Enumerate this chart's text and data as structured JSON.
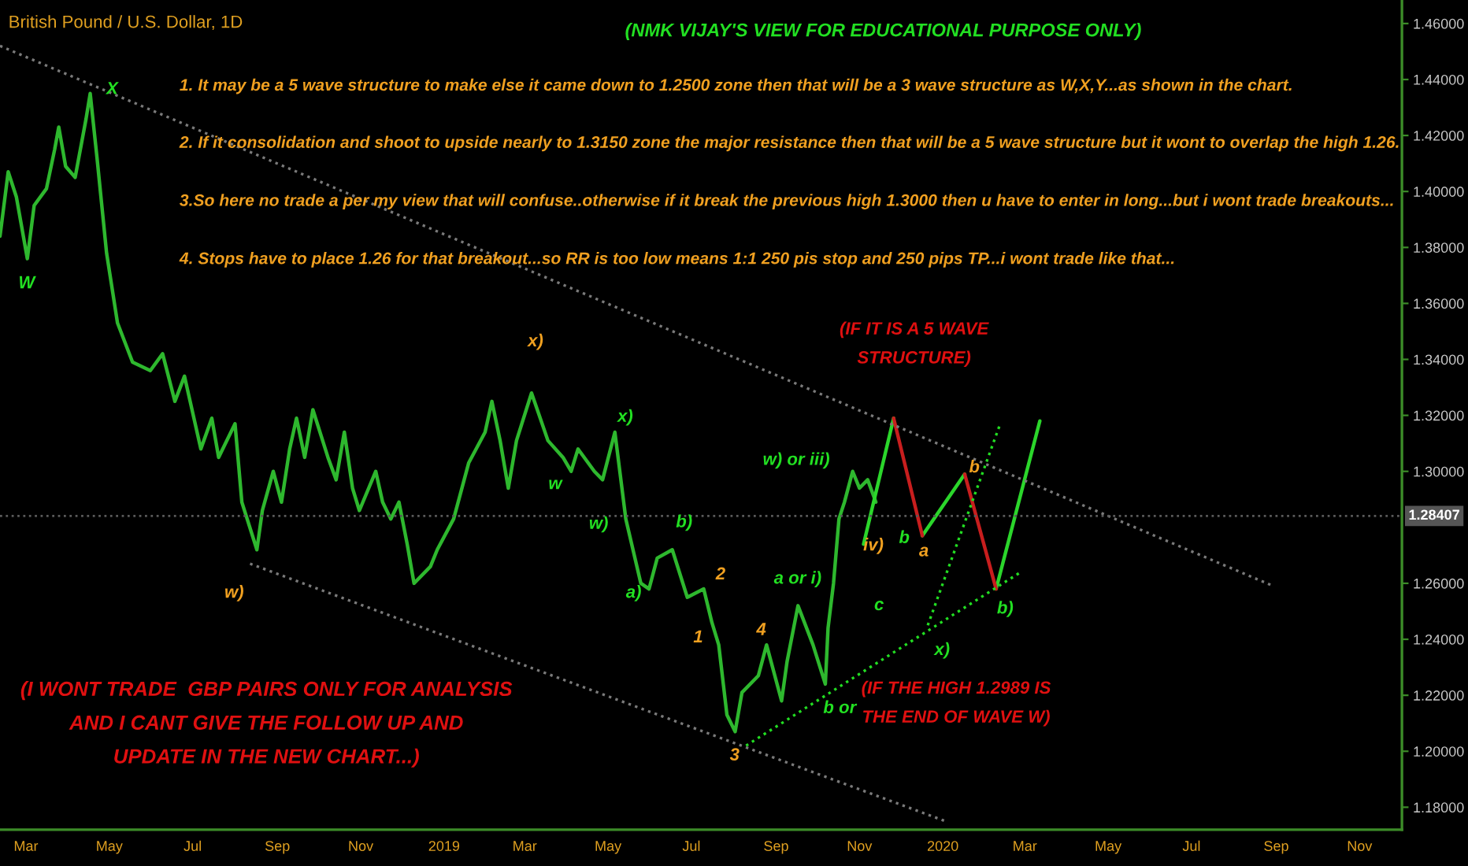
{
  "chart_data": {
    "type": "line",
    "title": "British Pound / U.S. Dollar, 1D",
    "xlim": [
      "2018-02-10",
      "2020-12-02"
    ],
    "ylim": [
      1.172,
      1.4684
    ],
    "xticks": [
      {
        "value": "2018-03-01",
        "label": "Mar"
      },
      {
        "value": "2018-05-01",
        "label": "May"
      },
      {
        "value": "2018-07-01",
        "label": "Jul"
      },
      {
        "value": "2018-09-01",
        "label": "Sep"
      },
      {
        "value": "2018-11-01",
        "label": "Nov"
      },
      {
        "value": "2019-01-01",
        "label": "2019"
      },
      {
        "value": "2019-03-01",
        "label": "Mar"
      },
      {
        "value": "2019-05-01",
        "label": "May"
      },
      {
        "value": "2019-07-01",
        "label": "Jul"
      },
      {
        "value": "2019-09-01",
        "label": "Sep"
      },
      {
        "value": "2019-11-01",
        "label": "Nov"
      },
      {
        "value": "2020-01-01",
        "label": "2020"
      },
      {
        "value": "2020-03-01",
        "label": "Mar"
      },
      {
        "value": "2020-05-01",
        "label": "May"
      },
      {
        "value": "2020-07-01",
        "label": "Jul"
      },
      {
        "value": "2020-09-01",
        "label": "Sep"
      },
      {
        "value": "2020-11-01",
        "label": "Nov"
      }
    ],
    "yticks": [
      {
        "value": 1.18,
        "label": "1.18000"
      },
      {
        "value": 1.2,
        "label": "1.20000"
      },
      {
        "value": 1.22,
        "label": "1.22000"
      },
      {
        "value": 1.24,
        "label": "1.24000"
      },
      {
        "value": 1.26,
        "label": "1.26000"
      },
      {
        "value": 1.3,
        "label": "1.30000"
      },
      {
        "value": 1.32,
        "label": "1.32000"
      },
      {
        "value": 1.34,
        "label": "1.34000"
      },
      {
        "value": 1.36,
        "label": "1.36000"
      },
      {
        "value": 1.38,
        "label": "1.38000"
      },
      {
        "value": 1.4,
        "label": "1.40000"
      },
      {
        "value": 1.42,
        "label": "1.42000"
      },
      {
        "value": 1.44,
        "label": "1.44000"
      },
      {
        "value": 1.46,
        "label": "1.46000"
      }
    ],
    "grid": false,
    "marker": "none",
    "ref_lines": [
      {
        "axis": "y",
        "value": 1.28407,
        "label": "1.28407",
        "color": "#5a5a5a",
        "line_style": "dotted"
      }
    ],
    "series": [
      {
        "color": "#2eb82e",
        "line_style": "solid",
        "x": [
          "2018-02-10",
          "2018-02-16",
          "2018-02-22",
          "2018-03-02",
          "2018-03-07",
          "2018-03-16",
          "2018-03-22",
          "2018-03-25",
          "2018-03-30",
          "2018-04-06",
          "2018-04-14",
          "2018-04-17",
          "2018-04-22",
          "2018-04-29",
          "2018-05-07",
          "2018-05-18",
          "2018-05-31",
          "2018-06-09",
          "2018-06-18",
          "2018-06-25",
          "2018-07-07",
          "2018-07-15",
          "2018-07-20",
          "2018-08-01",
          "2018-08-06",
          "2018-08-17",
          "2018-08-21",
          "2018-08-29",
          "2018-09-04",
          "2018-09-10",
          "2018-09-15",
          "2018-09-21",
          "2018-09-27",
          "2018-10-08",
          "2018-10-14",
          "2018-10-20",
          "2018-10-26",
          "2018-10-31",
          "2018-11-12",
          "2018-11-17",
          "2018-11-23",
          "2018-11-29",
          "2018-12-05",
          "2018-12-10",
          "2018-12-22",
          "2018-12-27",
          "2019-01-08",
          "2019-01-19",
          "2019-01-31",
          "2019-02-05",
          "2019-02-11",
          "2019-02-17",
          "2019-02-23",
          "2019-03-06",
          "2019-03-18",
          "2019-03-29",
          "2019-04-04",
          "2019-04-09",
          "2019-04-21",
          "2019-04-27",
          "2019-05-06",
          "2019-05-14",
          "2019-05-25",
          "2019-05-31",
          "2019-06-06",
          "2019-06-17",
          "2019-06-28",
          "2019-07-10",
          "2019-07-16",
          "2019-07-21",
          "2019-07-27",
          "2019-08-02",
          "2019-08-07",
          "2019-08-19",
          "2019-08-25",
          "2019-09-05",
          "2019-09-09",
          "2019-09-17",
          "2019-09-28",
          "2019-10-07",
          "2019-10-09",
          "2019-10-13",
          "2019-10-17",
          "2019-10-21",
          "2019-10-27",
          "2019-11-01",
          "2019-11-07",
          "2019-11-13"
        ],
        "values": [
          1.384,
          1.407,
          1.398,
          1.376,
          1.395,
          1.401,
          1.415,
          1.423,
          1.409,
          1.405,
          1.426,
          1.435,
          1.412,
          1.378,
          1.353,
          1.339,
          1.336,
          1.342,
          1.325,
          1.334,
          1.308,
          1.319,
          1.305,
          1.317,
          1.289,
          1.272,
          1.286,
          1.3,
          1.289,
          1.308,
          1.319,
          1.305,
          1.322,
          1.305,
          1.297,
          1.314,
          1.294,
          1.286,
          1.3,
          1.289,
          1.283,
          1.289,
          1.274,
          1.26,
          1.266,
          1.272,
          1.283,
          1.303,
          1.314,
          1.325,
          1.311,
          1.294,
          1.311,
          1.328,
          1.311,
          1.305,
          1.3,
          1.308,
          1.3,
          1.297,
          1.314,
          1.283,
          1.26,
          1.258,
          1.269,
          1.272,
          1.255,
          1.258,
          1.246,
          1.238,
          1.213,
          1.207,
          1.221,
          1.227,
          1.238,
          1.218,
          1.232,
          1.252,
          1.238,
          1.224,
          1.244,
          1.26,
          1.283,
          1.289,
          1.3,
          1.294,
          1.297,
          1.289
        ]
      },
      {
        "color": "#2bd62b",
        "line_style": "solid",
        "x": [
          "2019-11-04",
          "2019-11-26",
          "2019-12-06",
          "2019-12-17",
          "2020-01-17",
          "2020-01-28",
          "2020-02-09",
          "2020-03-12"
        ],
        "values": [
          1.274,
          1.319,
          null,
          1.277,
          1.299,
          null,
          1.258,
          1.318
        ]
      },
      {
        "color": "#c81e1e",
        "line_style": "solid",
        "x": [
          "2019-11-26",
          "2019-12-17",
          "2020-01-01",
          "2020-01-17",
          "2020-02-09"
        ],
        "values": [
          1.319,
          1.277,
          null,
          1.299,
          1.258
        ]
      },
      {
        "color": "#7a7a7a",
        "line_style": "dotted",
        "x": [
          "2018-02-10",
          "2020-08-30"
        ],
        "values": [
          1.452,
          1.259
        ]
      },
      {
        "color": "#7a7a7a",
        "line_style": "dotted",
        "x": [
          "2018-08-12",
          "2020-01-03"
        ],
        "values": [
          1.267,
          1.175
        ]
      },
      {
        "color": "#22dd22",
        "line_style": "dotted",
        "x": [
          "2019-08-10",
          "2020-02-27"
        ],
        "values": [
          1.202,
          1.264
        ]
      },
      {
        "color": "#22dd22",
        "line_style": "dotted",
        "x": [
          "2019-12-21",
          "2020-02-12"
        ],
        "values": [
          1.245,
          1.317
        ]
      }
    ],
    "annotations": [
      "(NMK VIJAY'S VIEW FOR EDUCATIONAL PURPOSE ONLY)",
      "1. It may be a 5 wave structure to make else it came down to 1.2500 zone then that will be a 3 wave structure as W,X,Y...as shown in the chart.",
      "2. If it consolidation and shoot to upside nearly to 1.3150 zone the major resistance then that will be a 5 wave structure but it wont to overlap the high 1.26.",
      "3.So here no trade a per my view that will confuse..otherwise if it break the previous high 1.3000 then u have to enter in long...but i wont trade breakouts...",
      "4. Stops have to place 1.26 for that breakout...so RR is too low means 1:1 250 pis stop and 250 pips TP...i wont trade like that...",
      "(IF IT IS A 5 WAVE\nSTRUCTURE)",
      "(IF THE HIGH 1.2989 IS\nTHE END OF WAVE W)",
      "(I WONT TRADE  GBP PAIRS ONLY FOR ANALYSIS\nAND I CANT GIVE THE FOLLOW UP AND\nUPDATE IN THE NEW CHART...)",
      "X",
      "W",
      "w)",
      "x)",
      "x)",
      "w)",
      "w",
      "b)",
      "a)",
      "2",
      "1",
      "4",
      "3",
      "a or i)",
      "b or",
      "w) or iii)",
      "iv)",
      "c",
      "b",
      "a",
      "b",
      "x)",
      "b)"
    ]
  }
}
